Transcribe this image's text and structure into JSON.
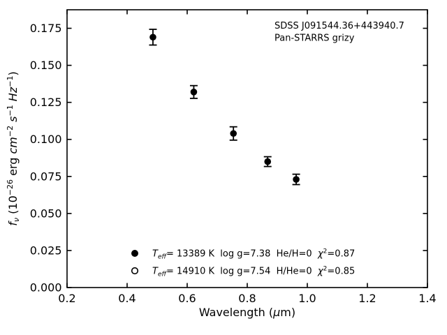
{
  "figure": {
    "bg": "#ffffff",
    "fg": "#000000",
    "annotation": {
      "line1": "SDSS J091544.36+443940.7",
      "line2": "Pan-STARRS grizy"
    }
  },
  "axes": {
    "xlabel_parts": {
      "pre": "Wavelength (",
      "mu": "μ",
      "post": "m)"
    },
    "ylabel_parts": {
      "f": "f",
      "nu": "ν",
      "p1": " (10",
      "s1": "−26",
      "p2": " erg ",
      "cm": "cm",
      "s2": "−2",
      "p3": " s",
      "s3": "−1",
      "p4": " Hz",
      "s4": "−1",
      "p5": ")"
    }
  },
  "legend": {
    "rows": [
      {
        "marker": "filled-circle",
        "T": "T",
        "eff": "eff",
        "mid": "= 13389 K  log g=7.38  He/H=0  ",
        "chi": "χ",
        "chisup": "2",
        "chival": "=0.87"
      },
      {
        "marker": "open-circle",
        "T": "T",
        "eff": "eff",
        "mid": "= 14910 K  log g=7.54  H/He=0  ",
        "chi": "χ",
        "chisup": "2",
        "chival": "=0.85"
      }
    ]
  },
  "chart_data": {
    "type": "scatter",
    "title": "",
    "xlabel": "Wavelength (μm)",
    "ylabel": "f_ν (10^−26 erg cm^−2 s^−1 Hz^−1)",
    "xlim": [
      0.2,
      1.4
    ],
    "ylim": [
      0,
      0.1875
    ],
    "grid": false,
    "tick_direction": "in",
    "ticks_all_sides": true,
    "xticks": [
      0.2,
      0.4,
      0.6,
      0.8,
      1.0,
      1.2,
      1.4
    ],
    "xtick_labels": [
      "0.2",
      "0.4",
      "0.6",
      "0.8",
      "1.0",
      "1.2",
      "1.4"
    ],
    "yticks": [
      0.0,
      0.025,
      0.05,
      0.075,
      0.1,
      0.125,
      0.15,
      0.175
    ],
    "ytick_labels": [
      "0.000",
      "0.025",
      "0.050",
      "0.075",
      "0.100",
      "0.125",
      "0.150",
      "0.175"
    ],
    "annotations": [
      "SDSS J091544.36+443940.7",
      "Pan-STARRS grizy"
    ],
    "series": [
      {
        "name": "Pan-STARRS grizy photometry",
        "marker": "filled-circle",
        "color": "#000000",
        "x": [
          0.486,
          0.622,
          0.754,
          0.868,
          0.963
        ],
        "y": [
          0.169,
          0.132,
          0.104,
          0.085,
          0.073
        ],
        "yerr": [
          0.0053,
          0.0043,
          0.0045,
          0.0033,
          0.0035
        ]
      }
    ],
    "legend_entries": [
      {
        "marker": "filled-circle",
        "label": "T_eff= 13389 K  log g=7.38  He/H=0  χ²=0.87"
      },
      {
        "marker": "open-circle",
        "label": "T_eff= 14910 K  log g=7.54  H/He=0  χ²=0.85"
      }
    ],
    "legend_position": "lower center-left inside axes"
  }
}
